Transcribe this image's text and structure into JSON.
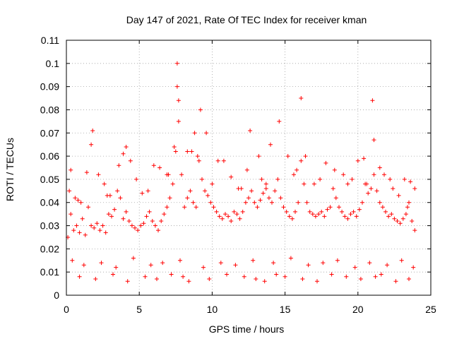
{
  "chart_data": {
    "type": "scatter",
    "title": "Day 147 of 2021, Rate Of TEC Index for receiver kman",
    "xlabel": "GPS time / hours",
    "ylabel": "ROTI / TECUs",
    "xlim": [
      0,
      25
    ],
    "ylim": [
      0,
      0.11
    ],
    "xticks": [
      "0",
      "5",
      "10",
      "15",
      "20",
      "25"
    ],
    "yticks": [
      "0",
      "0.01",
      "0.02",
      "0.03",
      "0.04",
      "0.05",
      "0.06",
      "0.07",
      "0.08",
      "0.09",
      "0.1",
      "0.11"
    ],
    "grid": true,
    "marker": "+",
    "series": [
      {
        "name": "ROTI",
        "color": "#ff0000",
        "x": [
          0.1,
          0.3,
          0.5,
          0.7,
          0.9,
          1.1,
          1.3,
          1.5,
          1.7,
          1.9,
          2.1,
          2.3,
          2.5,
          2.7,
          2.9,
          3.1,
          3.3,
          3.5,
          3.7,
          3.9,
          4.1,
          4.3,
          4.5,
          4.7,
          4.9,
          5.1,
          5.3,
          5.5,
          5.7,
          5.9,
          6.1,
          6.3,
          6.5,
          6.7,
          6.9,
          7.1,
          7.3,
          7.5,
          7.6,
          7.7,
          7.9,
          8.1,
          8.3,
          8.5,
          8.7,
          8.9,
          9.1,
          9.3,
          9.5,
          9.7,
          9.9,
          10.1,
          10.3,
          10.5,
          10.7,
          10.9,
          11.1,
          11.3,
          11.5,
          11.7,
          11.9,
          12.1,
          12.3,
          12.5,
          12.7,
          12.9,
          13.1,
          13.3,
          13.5,
          13.7,
          13.9,
          14.1,
          14.3,
          14.5,
          14.7,
          14.9,
          15.1,
          15.3,
          15.5,
          15.7,
          15.9,
          16.1,
          16.3,
          16.5,
          16.7,
          16.9,
          17.1,
          17.3,
          17.5,
          17.7,
          17.9,
          18.1,
          18.3,
          18.5,
          18.7,
          18.9,
          19.1,
          19.3,
          19.5,
          19.7,
          19.9,
          20.1,
          20.3,
          20.5,
          20.7,
          20.9,
          21.1,
          21.3,
          21.5,
          21.7,
          21.9,
          22.1,
          22.3,
          22.5,
          22.7,
          22.9,
          23.1,
          23.3,
          23.5,
          23.7,
          23.9,
          0.3,
          1.4,
          1.8,
          3.9,
          4.1,
          7.6,
          7.7,
          9.2,
          12.6,
          14.6,
          16.1,
          21.0,
          21.1,
          0.2,
          1.7,
          2.8,
          5.2,
          6.4,
          8.3,
          10.4,
          11.8,
          13.7,
          15.2,
          17.8,
          19.3,
          20.0,
          22.2,
          23.6,
          0.6,
          2.2,
          3.6,
          4.8,
          6.9,
          8.8,
          9.6,
          11.3,
          13.2,
          15.8,
          18.4,
          19.6,
          21.5,
          22.8,
          23.9,
          1.0,
          2.6,
          4.4,
          6.0,
          7.4,
          9.0,
          10.8,
          12.4,
          14.0,
          16.4,
          17.4,
          20.4,
          21.8,
          23.2,
          0.8,
          3.0,
          5.6,
          7.0,
          8.6,
          10.0,
          12.0,
          13.4,
          15.6,
          17.0,
          19.0,
          20.6,
          22.4,
          23.4,
          0.4,
          1.2,
          2.4,
          3.4,
          4.6,
          5.8,
          6.6,
          7.8,
          9.4,
          10.6,
          11.6,
          12.8,
          14.2,
          15.4,
          16.6,
          17.6,
          18.6,
          19.8,
          20.8,
          22.0,
          23.0,
          23.8,
          0.9,
          2.0,
          3.2,
          4.2,
          5.4,
          6.2,
          7.2,
          8.0,
          8.4,
          9.8,
          11.0,
          12.2,
          13.0,
          13.6,
          14.4,
          15.0,
          16.2,
          17.2,
          18.2,
          19.2,
          20.2,
          21.2,
          21.6,
          22.6,
          23.5
        ],
        "y": [
          0.025,
          0.035,
          0.028,
          0.03,
          0.027,
          0.033,
          0.026,
          0.038,
          0.03,
          0.029,
          0.031,
          0.028,
          0.03,
          0.027,
          0.035,
          0.034,
          0.037,
          0.045,
          0.042,
          0.033,
          0.036,
          0.032,
          0.03,
          0.029,
          0.028,
          0.03,
          0.031,
          0.034,
          0.036,
          0.032,
          0.03,
          0.028,
          0.032,
          0.035,
          0.038,
          0.042,
          0.048,
          0.062,
          0.09,
          0.075,
          0.052,
          0.038,
          0.042,
          0.045,
          0.04,
          0.038,
          0.058,
          0.05,
          0.045,
          0.043,
          0.04,
          0.038,
          0.036,
          0.034,
          0.033,
          0.035,
          0.034,
          0.032,
          0.036,
          0.035,
          0.033,
          0.036,
          0.04,
          0.042,
          0.045,
          0.04,
          0.038,
          0.041,
          0.044,
          0.046,
          0.042,
          0.04,
          0.045,
          0.05,
          0.042,
          0.038,
          0.036,
          0.034,
          0.033,
          0.036,
          0.04,
          0.058,
          0.048,
          0.04,
          0.036,
          0.035,
          0.034,
          0.035,
          0.036,
          0.034,
          0.037,
          0.038,
          0.046,
          0.042,
          0.038,
          0.036,
          0.034,
          0.033,
          0.035,
          0.036,
          0.034,
          0.037,
          0.04,
          0.048,
          0.044,
          0.046,
          0.052,
          0.045,
          0.04,
          0.038,
          0.036,
          0.034,
          0.035,
          0.033,
          0.032,
          0.031,
          0.033,
          0.035,
          0.04,
          0.032,
          0.028,
          0.054,
          0.053,
          0.071,
          0.061,
          0.064,
          0.1,
          0.084,
          0.08,
          0.071,
          0.075,
          0.085,
          0.084,
          0.067,
          0.045,
          0.065,
          0.043,
          0.044,
          0.055,
          0.062,
          0.058,
          0.046,
          0.048,
          0.06,
          0.057,
          0.048,
          0.058,
          0.05,
          0.049,
          0.042,
          0.052,
          0.056,
          0.05,
          0.052,
          0.07,
          0.07,
          0.051,
          0.06,
          0.054,
          0.054,
          0.05,
          0.055,
          0.043,
          0.046,
          0.04,
          0.048,
          0.058,
          0.056,
          0.064,
          0.06,
          0.058,
          0.054,
          0.065,
          0.06,
          0.05,
          0.059,
          0.052,
          0.05,
          0.041,
          0.043,
          0.045,
          0.052,
          0.062,
          0.048,
          0.046,
          0.05,
          0.052,
          0.048,
          0.052,
          0.048,
          0.046,
          0.038,
          0.015,
          0.013,
          0.014,
          0.012,
          0.016,
          0.013,
          0.014,
          0.015,
          0.012,
          0.014,
          0.013,
          0.015,
          0.014,
          0.016,
          0.013,
          0.014,
          0.015,
          0.012,
          0.014,
          0.013,
          0.015,
          0.012,
          0.008,
          0.007,
          0.009,
          0.006,
          0.008,
          0.007,
          0.009,
          0.008,
          0.006,
          0.007,
          0.009,
          0.008,
          0.007,
          0.006,
          0.009,
          0.008,
          0.007,
          0.006,
          0.009,
          0.008,
          0.007,
          0.008,
          0.009,
          0.006,
          0.007
        ]
      }
    ]
  }
}
